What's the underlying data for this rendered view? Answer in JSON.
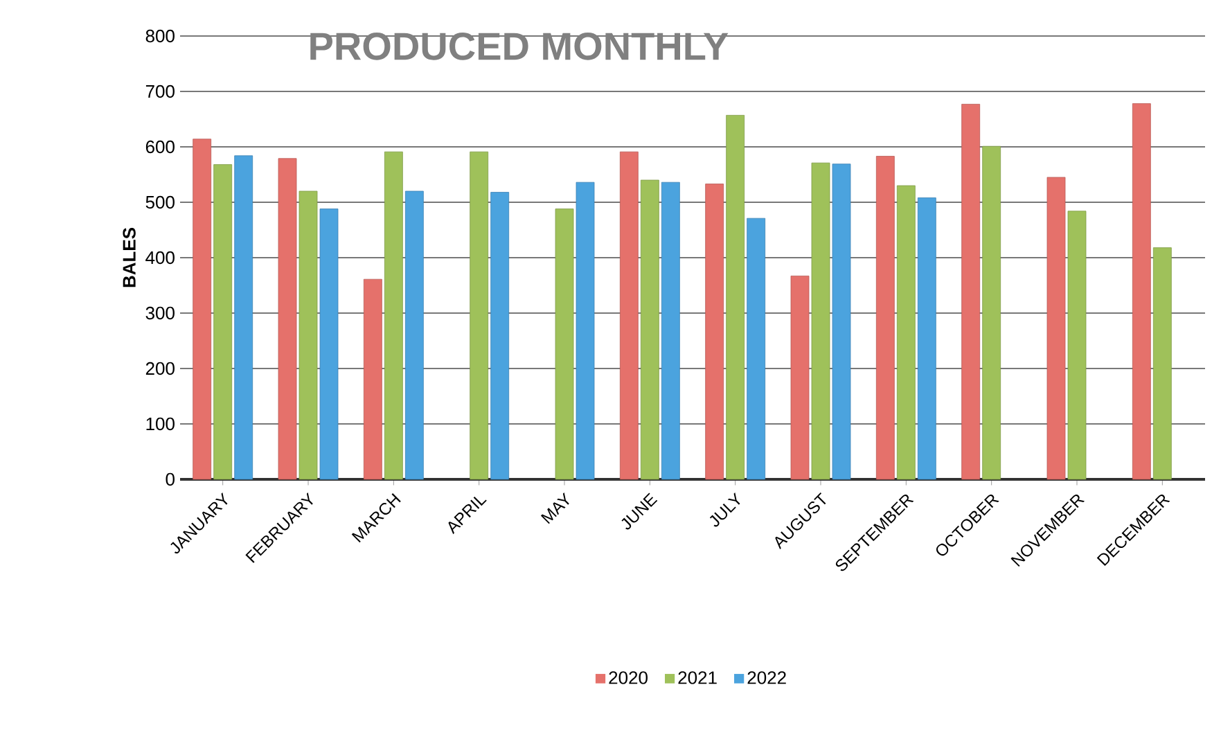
{
  "chart_data": {
    "type": "bar",
    "title": "PRODUCED MONTHLY",
    "ylabel": "BALES",
    "categories": [
      "JANUARY",
      "FEBRUARY",
      "MARCH",
      "APRIL",
      "MAY",
      "JUNE",
      "JULY",
      "AUGUST",
      "SEPTEMBER",
      "OCTOBER",
      "NOVEMBER",
      "DECEMBER"
    ],
    "series": [
      {
        "name": "2020",
        "color": "#e5716b",
        "values": [
          614,
          579,
          361,
          null,
          null,
          591,
          533,
          367,
          583,
          677,
          545,
          678
        ]
      },
      {
        "name": "2021",
        "color": "#9fc15a",
        "values": [
          568,
          520,
          591,
          591,
          488,
          540,
          657,
          571,
          530,
          601,
          484,
          418
        ]
      },
      {
        "name": "2022",
        "color": "#4ba3de",
        "values": [
          584,
          488,
          520,
          518,
          536,
          536,
          471,
          569,
          508,
          null,
          null,
          null
        ]
      }
    ],
    "ylim": [
      0,
      800
    ],
    "yticks": [
      0,
      100,
      200,
      300,
      400,
      500,
      600,
      700,
      800
    ],
    "grid": "y",
    "legend": "bottom"
  }
}
